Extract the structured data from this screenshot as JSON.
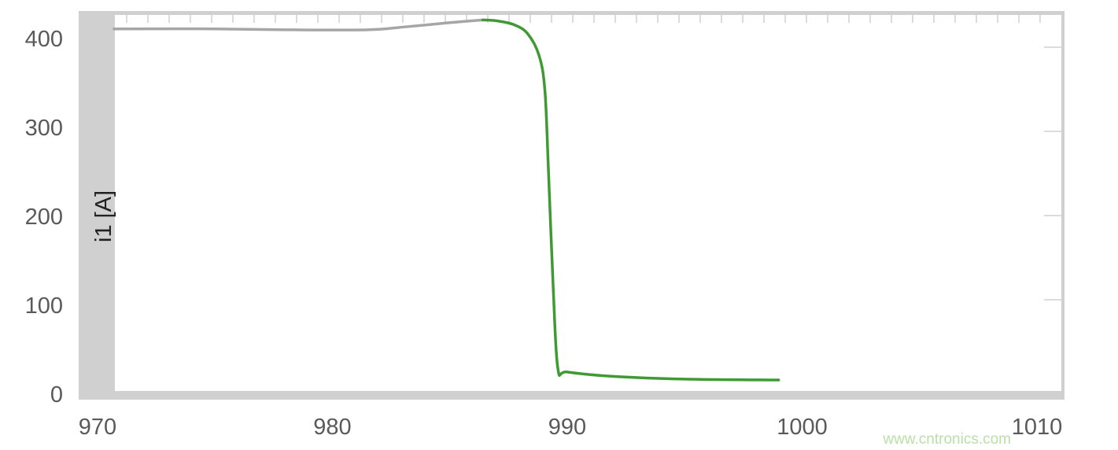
{
  "chart_data": {
    "type": "line",
    "title": "",
    "xlabel": "",
    "ylabel": "i1 [A]",
    "xlim": [
      969,
      1011.2
    ],
    "ylim": [
      0,
      420
    ],
    "x_ticks": [
      970,
      980,
      990,
      1000,
      1010
    ],
    "y_ticks": [
      0,
      100,
      200,
      300,
      400
    ],
    "grid": false,
    "series": [
      {
        "color": "#a6a6a6",
        "points": [
          [
            970.7,
            410
          ],
          [
            975,
            410
          ],
          [
            978,
            409
          ],
          [
            981.5,
            409
          ],
          [
            983,
            412
          ],
          [
            985,
            417
          ],
          [
            986.4,
            420
          ]
        ]
      },
      {
        "color": "#3f9a34",
        "points": [
          [
            986.4,
            420
          ],
          [
            987,
            419
          ],
          [
            987.7,
            415
          ],
          [
            988.3,
            405
          ],
          [
            988.8,
            380
          ],
          [
            989.05,
            340
          ],
          [
            989.2,
            250
          ],
          [
            989.4,
            120
          ],
          [
            989.6,
            28
          ],
          [
            990,
            24
          ],
          [
            992,
            19
          ],
          [
            995,
            16
          ],
          [
            999,
            15
          ]
        ]
      }
    ]
  },
  "watermark": "www.cntronics.com"
}
